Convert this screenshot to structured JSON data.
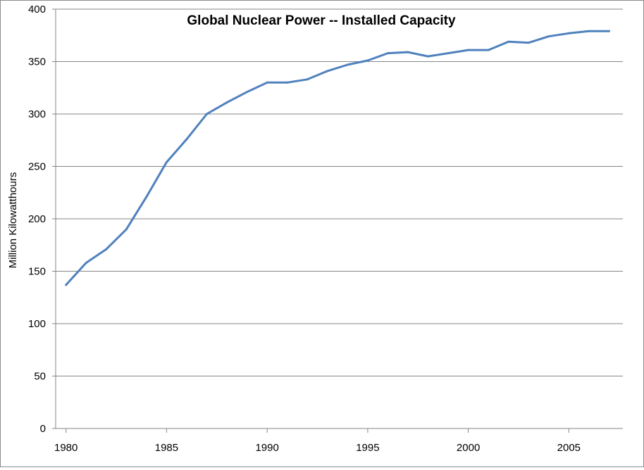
{
  "chart_data": {
    "type": "line",
    "title": "Global Nuclear Power -- Installed Capacity",
    "xlabel": "",
    "ylabel": "Million Kilowatthours",
    "xlim": [
      1980,
      2007
    ],
    "ylim": [
      0,
      400
    ],
    "x_ticks": [
      "1980",
      "1985",
      "1990",
      "1995",
      "2000",
      "2005"
    ],
    "y_ticks": [
      "0",
      "50",
      "100",
      "150",
      "200",
      "250",
      "300",
      "350",
      "400"
    ],
    "grid": true,
    "legend": "none",
    "line_color": "#4f81bd",
    "series": [
      {
        "x": [
          1980,
          1981,
          1982,
          1983,
          1984,
          1985,
          1986,
          1987,
          1988,
          1989,
          1990,
          1991,
          1992,
          1993,
          1994,
          1995,
          1996,
          1997,
          1998,
          1999,
          2000,
          2001,
          2002,
          2003,
          2004,
          2005,
          2006,
          2007
        ],
        "values": [
          137,
          158,
          171,
          190,
          221,
          254,
          276,
          300,
          311,
          321,
          330,
          330,
          333,
          341,
          347,
          351,
          358,
          359,
          355,
          358,
          361,
          361,
          369,
          368,
          374,
          377,
          379,
          379
        ]
      }
    ]
  }
}
